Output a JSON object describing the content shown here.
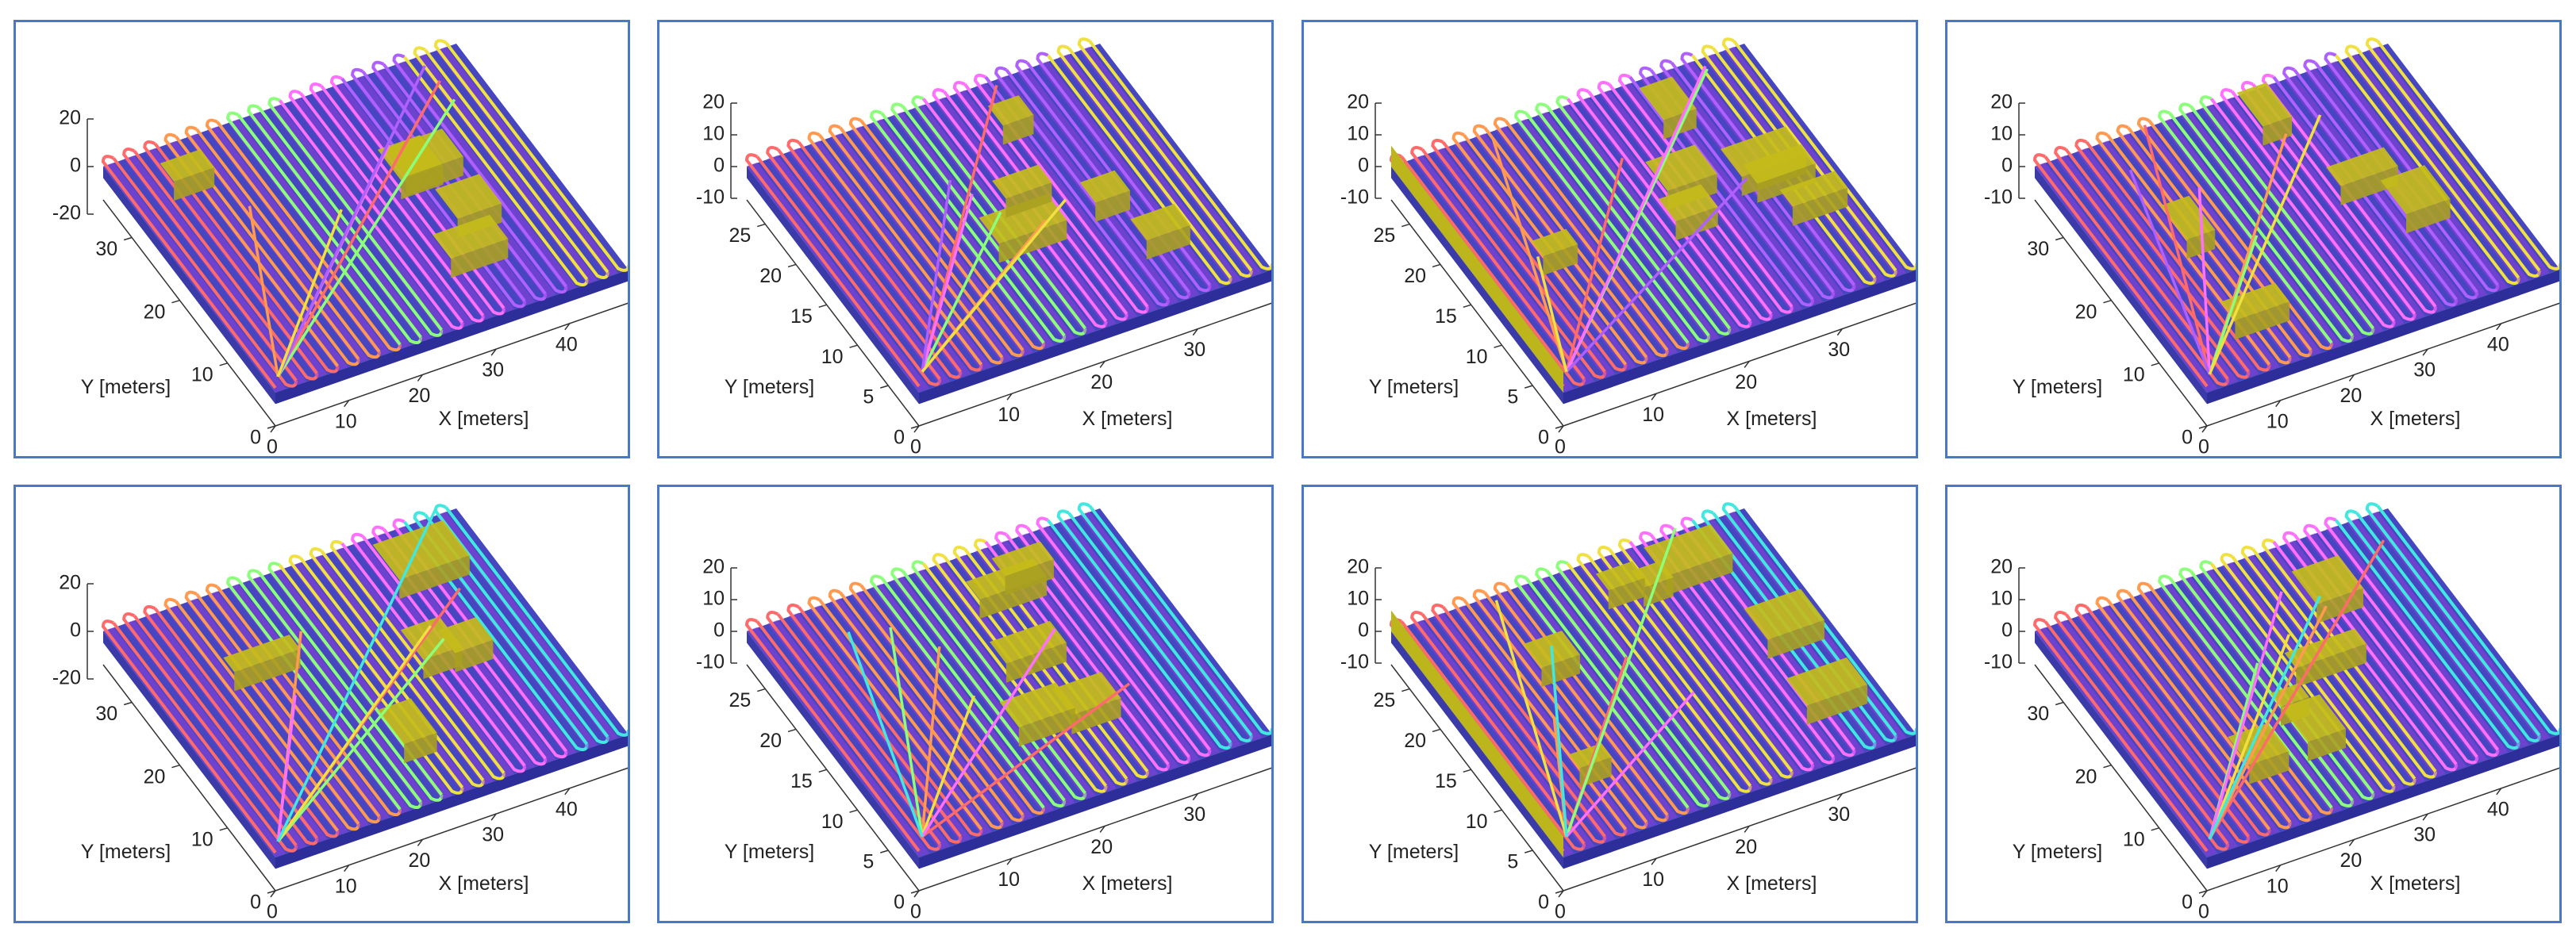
{
  "chart_data": [
    {
      "type": "surface3d",
      "xlabel": "X [meters]",
      "ylabel": "Y [meters]",
      "xlim": [
        0,
        48
      ],
      "ylim": [
        0,
        36
      ],
      "zlim": [
        -20,
        20
      ],
      "xticks": [
        0,
        10,
        20,
        30,
        40
      ],
      "yticks": [
        0,
        10,
        20,
        30
      ],
      "zticks": [
        -20,
        0,
        20
      ]
    },
    {
      "type": "surface3d",
      "xlabel": "X [meters]",
      "ylabel": "Y [meters]",
      "xlim": [
        0,
        38
      ],
      "ylim": [
        0,
        28
      ],
      "zlim": [
        -10,
        20
      ],
      "xticks": [
        0,
        10,
        20,
        30
      ],
      "yticks": [
        0,
        5,
        10,
        15,
        20,
        25
      ],
      "zticks": [
        -10,
        0,
        10,
        20
      ]
    },
    {
      "type": "surface3d",
      "xlabel": "X [meters]",
      "ylabel": "Y [meters]",
      "xlim": [
        0,
        38
      ],
      "ylim": [
        0,
        28
      ],
      "zlim": [
        -10,
        20
      ],
      "xticks": [
        0,
        10,
        20,
        30
      ],
      "yticks": [
        0,
        5,
        10,
        15,
        20,
        25
      ],
      "zticks": [
        -10,
        0,
        10,
        20
      ]
    },
    {
      "type": "surface3d",
      "xlabel": "X [meters]",
      "ylabel": "Y [meters]",
      "xlim": [
        0,
        48
      ],
      "ylim": [
        0,
        36
      ],
      "zlim": [
        -10,
        20
      ],
      "xticks": [
        0,
        10,
        20,
        30,
        40
      ],
      "yticks": [
        0,
        10,
        20,
        30
      ],
      "zticks": [
        -10,
        0,
        10,
        20
      ]
    },
    {
      "type": "surface3d",
      "xlabel": "X [meters]",
      "ylabel": "Y [meters]",
      "xlim": [
        0,
        48
      ],
      "ylim": [
        0,
        36
      ],
      "zlim": [
        -20,
        20
      ],
      "xticks": [
        0,
        10,
        20,
        30,
        40
      ],
      "yticks": [
        0,
        10,
        20,
        30
      ],
      "zticks": [
        -20,
        0,
        20
      ]
    },
    {
      "type": "surface3d",
      "xlabel": "X [meters]",
      "ylabel": "Y [meters]",
      "xlim": [
        0,
        38
      ],
      "ylim": [
        0,
        28
      ],
      "zlim": [
        -10,
        20
      ],
      "xticks": [
        0,
        10,
        20,
        30
      ],
      "yticks": [
        0,
        5,
        10,
        15,
        20,
        25
      ],
      "zticks": [
        -10,
        0,
        10,
        20
      ]
    },
    {
      "type": "surface3d",
      "xlabel": "X [meters]",
      "ylabel": "Y [meters]",
      "xlim": [
        0,
        38
      ],
      "ylim": [
        0,
        28
      ],
      "zlim": [
        -10,
        20
      ],
      "xticks": [
        0,
        10,
        20,
        30
      ],
      "yticks": [
        0,
        5,
        10,
        15,
        20,
        25
      ],
      "zticks": [
        -10,
        0,
        10,
        20
      ]
    },
    {
      "type": "surface3d",
      "xlabel": "X [meters]",
      "ylabel": "Y [meters]",
      "xlim": [
        0,
        48
      ],
      "ylim": [
        0,
        36
      ],
      "zlim": [
        -10,
        20
      ],
      "xticks": [
        0,
        10,
        20,
        30,
        40
      ],
      "yticks": [
        0,
        10,
        20,
        30
      ],
      "zticks": [
        -10,
        0,
        10,
        20
      ]
    }
  ]
}
